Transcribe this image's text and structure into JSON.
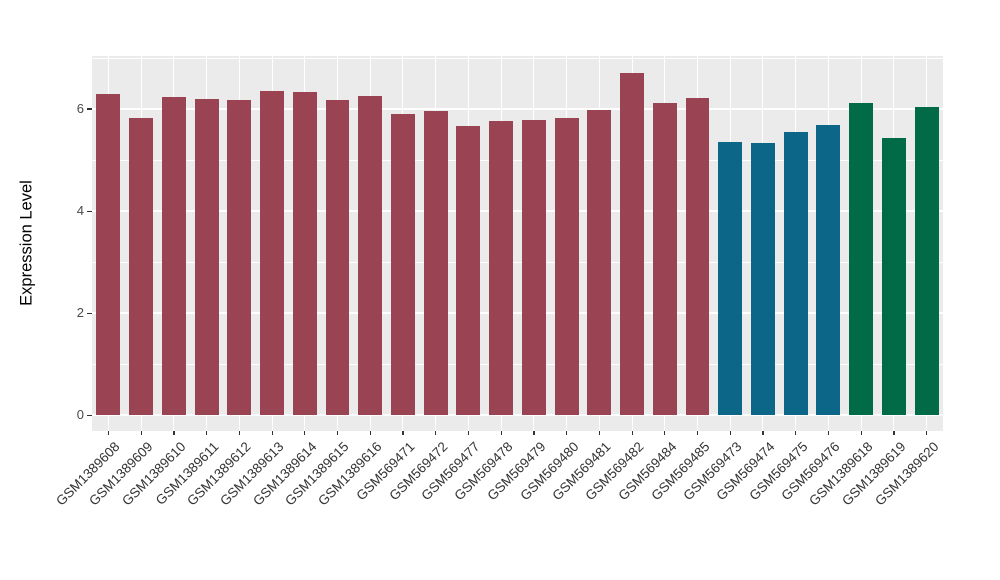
{
  "figure": {
    "background_color": "#FFFFFF",
    "panel_background_color": "#EBEBEB",
    "gridline_color": "#FFFFFF",
    "axis_text_color": "#333333",
    "axis_title_color": "#000000",
    "tick_color": "#333333"
  },
  "chart_data": {
    "type": "bar",
    "title": "",
    "xlabel": "",
    "ylabel": "Expression Level",
    "ylim": [
      -0.31,
      7.04
    ],
    "yticks_major": [
      0,
      2,
      4,
      6
    ],
    "yticks_minor": [
      1,
      3,
      5,
      7
    ],
    "grid": "horizontal major+minor white lines on gray panel; vertical white line at each category center",
    "legend_position": "none",
    "bar_width_fraction": 0.73,
    "categories": [
      "GSM1389608",
      "GSM1389609",
      "GSM1389610",
      "GSM1389611",
      "GSM1389612",
      "GSM1389613",
      "GSM1389614",
      "GSM1389615",
      "GSM1389616",
      "GSM569471",
      "GSM569472",
      "GSM569477",
      "GSM569478",
      "GSM569479",
      "GSM569480",
      "GSM569481",
      "GSM569482",
      "GSM569484",
      "GSM569485",
      "GSM569473",
      "GSM569474",
      "GSM569475",
      "GSM569476",
      "GSM1389618",
      "GSM1389619",
      "GSM1389620"
    ],
    "values": [
      6.3,
      5.83,
      6.23,
      6.19,
      6.17,
      6.35,
      6.33,
      6.17,
      6.25,
      5.9,
      5.97,
      5.66,
      5.76,
      5.79,
      5.83,
      5.98,
      6.7,
      6.12,
      6.21,
      5.35,
      5.33,
      5.55,
      5.68,
      6.12,
      5.43,
      6.05
    ],
    "bar_groups": [
      "maroon",
      "maroon",
      "maroon",
      "maroon",
      "maroon",
      "maroon",
      "maroon",
      "maroon",
      "maroon",
      "maroon",
      "maroon",
      "maroon",
      "maroon",
      "maroon",
      "maroon",
      "maroon",
      "maroon",
      "maroon",
      "maroon",
      "teal",
      "teal",
      "teal",
      "teal",
      "green",
      "green",
      "green"
    ],
    "palette": {
      "maroon": "#9A4352",
      "teal": "#0C6687",
      "green": "#016A46"
    }
  }
}
